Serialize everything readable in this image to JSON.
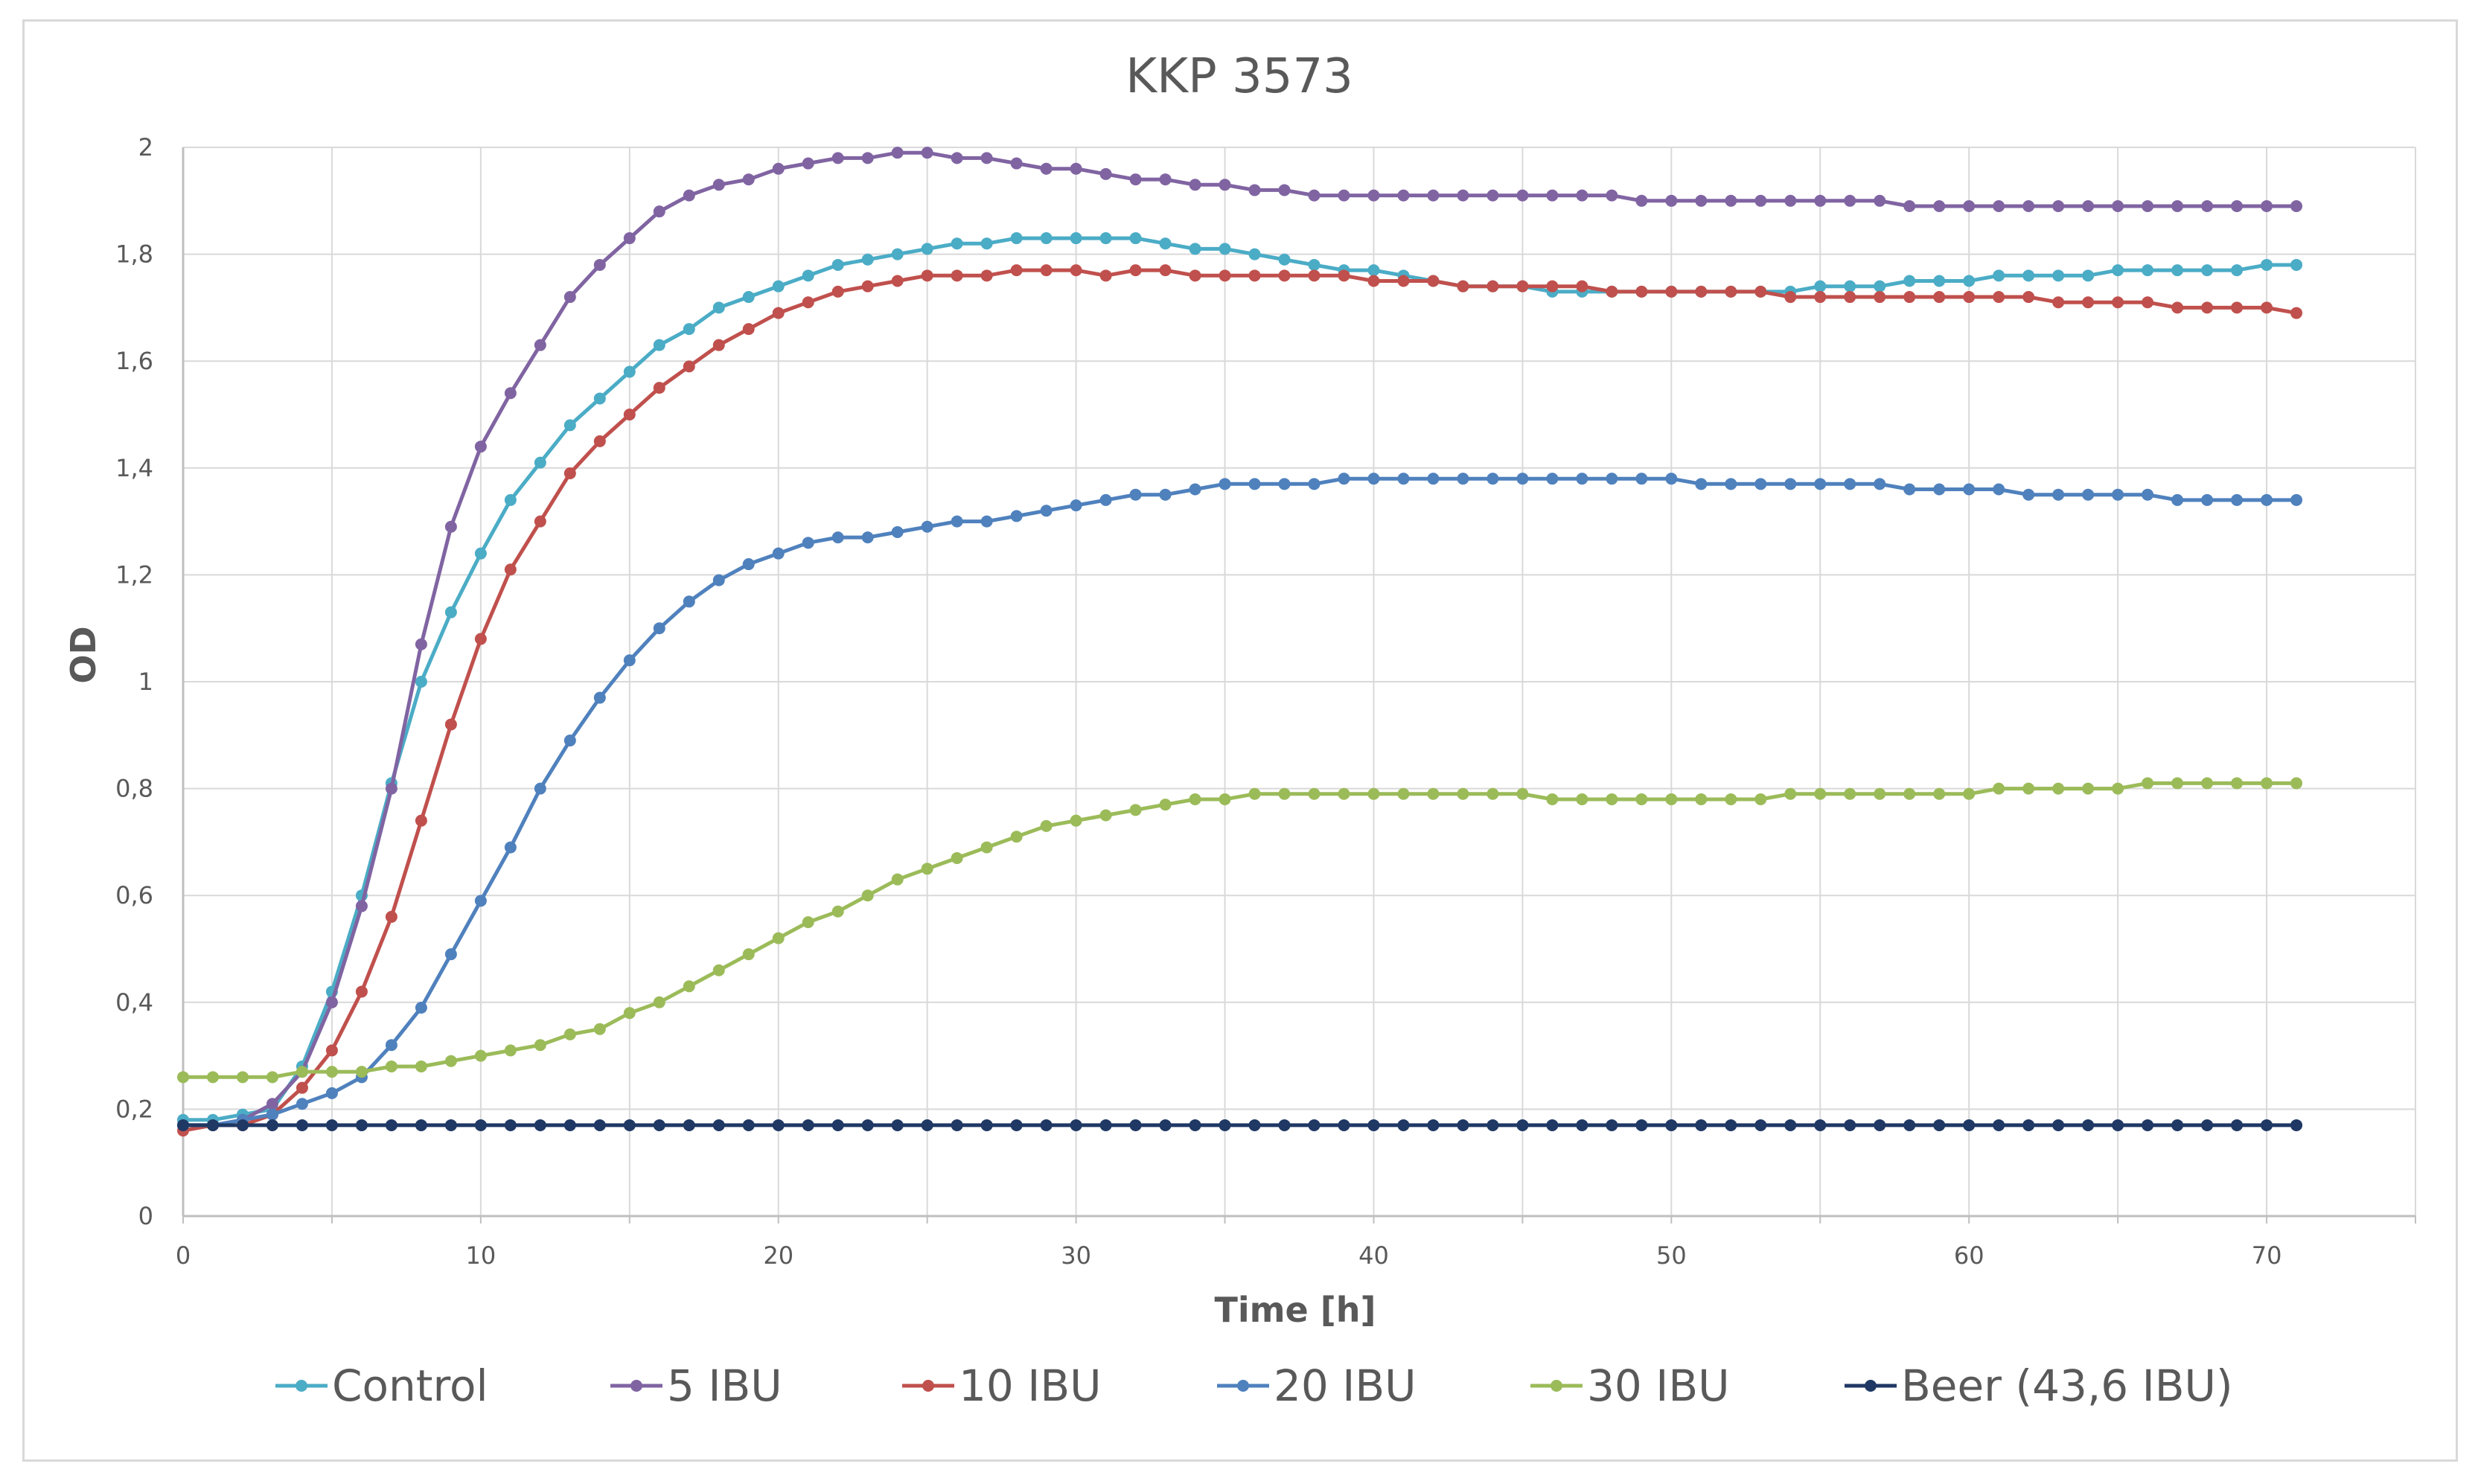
{
  "chart_data": {
    "type": "line",
    "title": "KKP 3573",
    "xlabel": "Time [h]",
    "ylabel": "OD",
    "xlim": [
      0,
      75
    ],
    "ylim": [
      0,
      2
    ],
    "grid": true,
    "legend_position": "bottom",
    "x_ticks": [
      0,
      10,
      20,
      30,
      40,
      50,
      60,
      70
    ],
    "x_tick_labels": [
      "0",
      "10",
      "20",
      "30",
      "40",
      "50",
      "60",
      "70"
    ],
    "y_ticks": [
      0,
      0.2,
      0.4,
      0.6,
      0.8,
      1,
      1.2,
      1.4,
      1.6,
      1.8,
      2
    ],
    "y_tick_labels": [
      "0",
      "0,2",
      "0,4",
      "0,6",
      "0,8",
      "1",
      "1,2",
      "1,4",
      "1,6",
      "1,8",
      "2"
    ],
    "x": [
      0,
      1,
      2,
      3,
      4,
      5,
      6,
      7,
      8,
      9,
      10,
      11,
      12,
      13,
      14,
      15,
      16,
      17,
      18,
      19,
      20,
      21,
      22,
      23,
      24,
      25,
      26,
      27,
      28,
      29,
      30,
      31,
      32,
      33,
      34,
      35,
      36,
      37,
      38,
      39,
      40,
      41,
      42,
      43,
      44,
      45,
      46,
      47,
      48,
      49,
      50,
      51,
      52,
      53,
      54,
      55,
      56,
      57,
      58,
      59,
      60,
      61,
      62,
      63,
      64,
      65,
      66,
      67,
      68,
      69,
      70,
      71
    ],
    "series": [
      {
        "name": "Control",
        "color": "#4bacc6",
        "values": [
          0.18,
          0.18,
          0.19,
          0.2,
          0.28,
          0.42,
          0.6,
          0.81,
          1.0,
          1.13,
          1.24,
          1.34,
          1.41,
          1.48,
          1.53,
          1.58,
          1.63,
          1.66,
          1.7,
          1.72,
          1.74,
          1.76,
          1.78,
          1.79,
          1.8,
          1.81,
          1.82,
          1.82,
          1.83,
          1.83,
          1.83,
          1.83,
          1.83,
          1.82,
          1.81,
          1.81,
          1.8,
          1.79,
          1.78,
          1.77,
          1.77,
          1.76,
          1.75,
          1.74,
          1.74,
          1.74,
          1.73,
          1.73,
          1.73,
          1.73,
          1.73,
          1.73,
          1.73,
          1.73,
          1.73,
          1.74,
          1.74,
          1.74,
          1.75,
          1.75,
          1.75,
          1.76,
          1.76,
          1.76,
          1.76,
          1.77,
          1.77,
          1.77,
          1.77,
          1.77,
          1.78,
          1.78
        ]
      },
      {
        "name": "5 IBU",
        "color": "#8064a2",
        "values": [
          0.17,
          0.17,
          0.18,
          0.21,
          0.27,
          0.4,
          0.58,
          0.8,
          1.07,
          1.29,
          1.44,
          1.54,
          1.63,
          1.72,
          1.78,
          1.83,
          1.88,
          1.91,
          1.93,
          1.94,
          1.96,
          1.97,
          1.98,
          1.98,
          1.99,
          1.99,
          1.98,
          1.98,
          1.97,
          1.96,
          1.96,
          1.95,
          1.94,
          1.94,
          1.93,
          1.93,
          1.92,
          1.92,
          1.91,
          1.91,
          1.91,
          1.91,
          1.91,
          1.91,
          1.91,
          1.91,
          1.91,
          1.91,
          1.91,
          1.9,
          1.9,
          1.9,
          1.9,
          1.9,
          1.9,
          1.9,
          1.9,
          1.9,
          1.89,
          1.89,
          1.89,
          1.89,
          1.89,
          1.89,
          1.89,
          1.89,
          1.89,
          1.89,
          1.89,
          1.89,
          1.89,
          1.89
        ]
      },
      {
        "name": "10 IBU",
        "color": "#c0504d",
        "values": [
          0.16,
          0.17,
          0.17,
          0.19,
          0.24,
          0.31,
          0.42,
          0.56,
          0.74,
          0.92,
          1.08,
          1.21,
          1.3,
          1.39,
          1.45,
          1.5,
          1.55,
          1.59,
          1.63,
          1.66,
          1.69,
          1.71,
          1.73,
          1.74,
          1.75,
          1.76,
          1.76,
          1.76,
          1.77,
          1.77,
          1.77,
          1.76,
          1.77,
          1.77,
          1.76,
          1.76,
          1.76,
          1.76,
          1.76,
          1.76,
          1.75,
          1.75,
          1.75,
          1.74,
          1.74,
          1.74,
          1.74,
          1.74,
          1.73,
          1.73,
          1.73,
          1.73,
          1.73,
          1.73,
          1.72,
          1.72,
          1.72,
          1.72,
          1.72,
          1.72,
          1.72,
          1.72,
          1.72,
          1.71,
          1.71,
          1.71,
          1.71,
          1.7,
          1.7,
          1.7,
          1.7,
          1.69
        ]
      },
      {
        "name": "20 IBU",
        "color": "#4f81bd",
        "values": [
          0.17,
          0.17,
          0.18,
          0.19,
          0.21,
          0.23,
          0.26,
          0.32,
          0.39,
          0.49,
          0.59,
          0.69,
          0.8,
          0.89,
          0.97,
          1.04,
          1.1,
          1.15,
          1.19,
          1.22,
          1.24,
          1.26,
          1.27,
          1.27,
          1.28,
          1.29,
          1.3,
          1.3,
          1.31,
          1.32,
          1.33,
          1.34,
          1.35,
          1.35,
          1.36,
          1.37,
          1.37,
          1.37,
          1.37,
          1.38,
          1.38,
          1.38,
          1.38,
          1.38,
          1.38,
          1.38,
          1.38,
          1.38,
          1.38,
          1.38,
          1.38,
          1.37,
          1.37,
          1.37,
          1.37,
          1.37,
          1.37,
          1.37,
          1.36,
          1.36,
          1.36,
          1.36,
          1.35,
          1.35,
          1.35,
          1.35,
          1.35,
          1.34,
          1.34,
          1.34,
          1.34,
          1.34
        ]
      },
      {
        "name": "30 IBU",
        "color": "#9bbb59",
        "values": [
          0.26,
          0.26,
          0.26,
          0.26,
          0.27,
          0.27,
          0.27,
          0.28,
          0.28,
          0.29,
          0.3,
          0.31,
          0.32,
          0.34,
          0.35,
          0.38,
          0.4,
          0.43,
          0.46,
          0.49,
          0.52,
          0.55,
          0.57,
          0.6,
          0.63,
          0.65,
          0.67,
          0.69,
          0.71,
          0.73,
          0.74,
          0.75,
          0.76,
          0.77,
          0.78,
          0.78,
          0.79,
          0.79,
          0.79,
          0.79,
          0.79,
          0.79,
          0.79,
          0.79,
          0.79,
          0.79,
          0.78,
          0.78,
          0.78,
          0.78,
          0.78,
          0.78,
          0.78,
          0.78,
          0.79,
          0.79,
          0.79,
          0.79,
          0.79,
          0.79,
          0.79,
          0.8,
          0.8,
          0.8,
          0.8,
          0.8,
          0.81,
          0.81,
          0.81,
          0.81,
          0.81,
          0.81
        ]
      },
      {
        "name": "Beer (43,6 IBU)",
        "color": "#1f3864",
        "values": [
          0.17,
          0.17,
          0.17,
          0.17,
          0.17,
          0.17,
          0.17,
          0.17,
          0.17,
          0.17,
          0.17,
          0.17,
          0.17,
          0.17,
          0.17,
          0.17,
          0.17,
          0.17,
          0.17,
          0.17,
          0.17,
          0.17,
          0.17,
          0.17,
          0.17,
          0.17,
          0.17,
          0.17,
          0.17,
          0.17,
          0.17,
          0.17,
          0.17,
          0.17,
          0.17,
          0.17,
          0.17,
          0.17,
          0.17,
          0.17,
          0.17,
          0.17,
          0.17,
          0.17,
          0.17,
          0.17,
          0.17,
          0.17,
          0.17,
          0.17,
          0.17,
          0.17,
          0.17,
          0.17,
          0.17,
          0.17,
          0.17,
          0.17,
          0.17,
          0.17,
          0.17,
          0.17,
          0.17,
          0.17,
          0.17,
          0.17,
          0.17,
          0.17,
          0.17,
          0.17,
          0.17,
          0.17
        ]
      }
    ]
  },
  "style": {
    "grid_color": "#d9d9d9",
    "axis_color": "#bfbfbf",
    "text_color": "#595959"
  }
}
